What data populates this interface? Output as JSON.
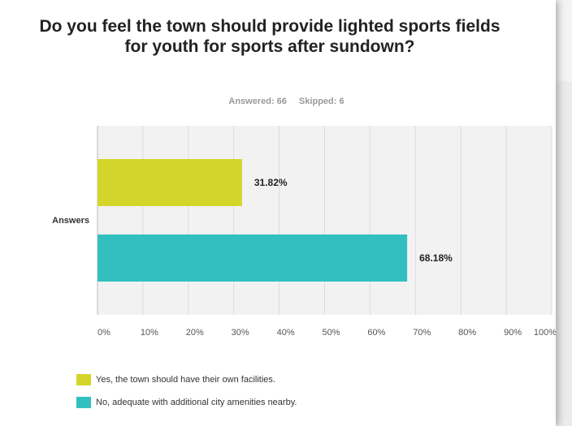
{
  "question": "Do you feel the town should provide lighted sports fields for youth for sports after sundown?",
  "answered_label": "Answered: 66",
  "skipped_label": "Skipped: 6",
  "colors": {
    "yes": "#d4d52a",
    "no": "#33bfc0",
    "grid": "#dcdcdc",
    "plot_bg": "#f2f2f2"
  },
  "chart_data": {
    "type": "bar",
    "orientation": "horizontal",
    "categories": [
      "Answers"
    ],
    "series": [
      {
        "name": "Yes, the town should have their own facilities.",
        "values": [
          31.82
        ],
        "label": "31.82%",
        "color": "#d4d52a"
      },
      {
        "name": "No, adequate with additional city amenities nearby.",
        "values": [
          68.18
        ],
        "label": "68.18%",
        "color": "#33bfc0"
      }
    ],
    "xlim": [
      0,
      100
    ],
    "xticks": [
      "0%",
      "10%",
      "20%",
      "30%",
      "40%",
      "50%",
      "60%",
      "70%",
      "80%",
      "90%",
      "100%"
    ],
    "ylabel": "Answers",
    "grid": true,
    "legend": "bottom"
  }
}
